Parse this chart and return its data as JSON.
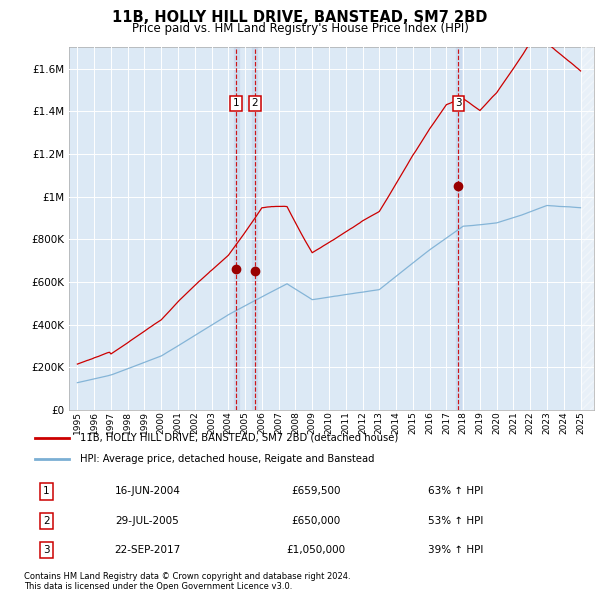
{
  "title1": "11B, HOLLY HILL DRIVE, BANSTEAD, SM7 2BD",
  "title2": "Price paid vs. HM Land Registry's House Price Index (HPI)",
  "legend_line1": "11B, HOLLY HILL DRIVE, BANSTEAD, SM7 2BD (detached house)",
  "legend_line2": "HPI: Average price, detached house, Reigate and Banstead",
  "transactions": [
    {
      "num": 1,
      "date": "16-JUN-2004",
      "price": "£659,500",
      "hpi": "63% ↑ HPI",
      "year": 2004.46,
      "value": 659500
    },
    {
      "num": 2,
      "date": "29-JUL-2005",
      "price": "£650,000",
      "hpi": "53% ↑ HPI",
      "year": 2005.57,
      "value": 650000
    },
    {
      "num": 3,
      "date": "22-SEP-2017",
      "price": "£1,050,000",
      "hpi": "39% ↑ HPI",
      "year": 2017.72,
      "value": 1050000
    }
  ],
  "footnote1": "Contains HM Land Registry data © Crown copyright and database right 2024.",
  "footnote2": "This data is licensed under the Open Government Licence v3.0.",
  "red_color": "#cc0000",
  "blue_color": "#7bafd4",
  "bg_color": "#dce9f5",
  "grid_color": "#ffffff",
  "ylim": [
    0,
    1700000
  ],
  "yticks": [
    0,
    200000,
    400000,
    600000,
    800000,
    1000000,
    1200000,
    1400000,
    1600000
  ],
  "xmin": 1994.5,
  "xmax": 2025.8
}
